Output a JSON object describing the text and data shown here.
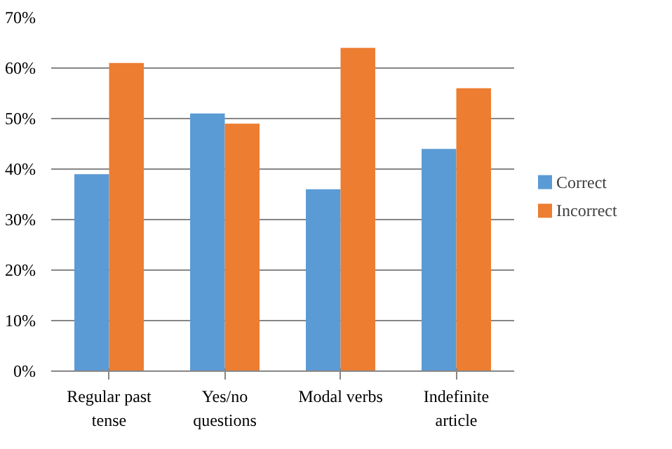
{
  "chart_data": {
    "type": "bar",
    "categories": [
      "Regular past tense",
      "Yes/no questions",
      "Modal verbs",
      "Indefinite article"
    ],
    "series": [
      {
        "name": "Correct",
        "color": "#5b9bd5",
        "values": [
          39,
          51,
          36,
          44
        ]
      },
      {
        "name": "Incorrect",
        "color": "#ed7d31",
        "values": [
          61,
          49,
          64,
          56
        ]
      }
    ],
    "ylim": [
      0,
      70
    ],
    "yticks": [
      {
        "value": 0,
        "label": "0%"
      },
      {
        "value": 10,
        "label": "10%"
      },
      {
        "value": 20,
        "label": "20%"
      },
      {
        "value": 30,
        "label": "30%"
      },
      {
        "value": 40,
        "label": "40%"
      },
      {
        "value": 50,
        "label": "50%"
      },
      {
        "value": 60,
        "label": "60%"
      },
      {
        "value": 70,
        "label": "70%"
      }
    ],
    "grid": "y",
    "legend": "right"
  }
}
